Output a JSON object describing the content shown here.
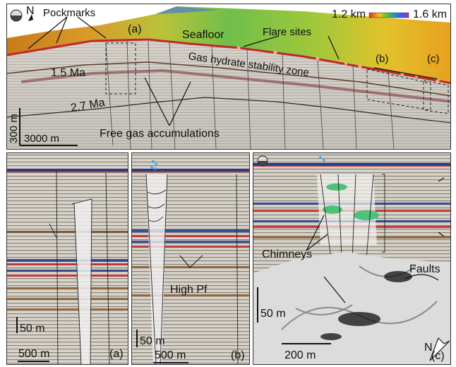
{
  "main": {
    "north_label": "N",
    "pockmarks": "Pockmarks",
    "panel_a_marker": "(a)",
    "panel_b_marker": "(b)",
    "panel_c_marker": "(c)",
    "seafloor": "Seafloor",
    "flare_sites": "Flare sites",
    "age_1": "1.5 Ma",
    "age_2": "2.7 Ma",
    "ghsz": "Gas hydrate stability zone",
    "free_gas": "Free gas accumulations",
    "scale_vertical": "300 m",
    "scale_horizontal": "3000 m",
    "colorbar_min": "1.2 km",
    "colorbar_max": "1.6 km"
  },
  "panel_a": {
    "scale_vertical": "50 m",
    "scale_horizontal": "500 m",
    "label": "(a)"
  },
  "panel_b": {
    "scale_vertical": "50 m",
    "scale_horizontal": "500 m",
    "label": "(b)",
    "high_pf": "High Pf"
  },
  "panel_c": {
    "chimneys": "Chimneys",
    "faults": "Faults",
    "scale_vertical": "50 m",
    "scale_horizontal": "200 m",
    "north_label": "N",
    "label": "(c)"
  },
  "colors": {
    "seafloor_bathy_low": "#d03a10",
    "seafloor_bathy_high": "#3a8a3a",
    "seismic_red": "#c0282a",
    "seismic_blue": "#1e3a8a",
    "gas_green": "#3bbf6a"
  }
}
